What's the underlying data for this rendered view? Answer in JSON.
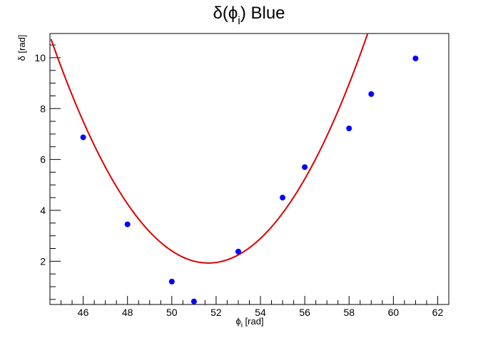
{
  "chart_data": {
    "type": "scatter",
    "title": "δ(ϕ_i) Blue",
    "title_parts": {
      "main": "δ(ϕ",
      "sub": "i",
      "tail": ") Blue"
    },
    "xlabel": "ϕ_i [rad]",
    "xlabel_parts": {
      "main": "ϕ",
      "sub": "i",
      "tail": " [rad]"
    },
    "ylabel": "δ [rad]",
    "xlim": [
      44.5,
      62.5
    ],
    "ylim": [
      0.3,
      10.95
    ],
    "x_ticks": [
      46,
      48,
      50,
      52,
      54,
      56,
      58,
      60,
      62
    ],
    "y_ticks": [
      2,
      4,
      6,
      8,
      10
    ],
    "grid": false,
    "series": [
      {
        "points": [
          {
            "x": 46,
            "y": 6.87
          },
          {
            "x": 48,
            "y": 3.45
          },
          {
            "x": 50,
            "y": 1.2
          },
          {
            "x": 51,
            "y": 0.42
          },
          {
            "x": 53,
            "y": 2.38
          },
          {
            "x": 55,
            "y": 4.5
          },
          {
            "x": 56,
            "y": 5.7
          },
          {
            "x": 58,
            "y": 7.22
          },
          {
            "x": 59,
            "y": 8.57
          },
          {
            "x": 61,
            "y": 9.97
          }
        ],
        "color": "#0000ff"
      }
    ],
    "fit": {
      "type": "quadratic",
      "vertex_x": 51.65,
      "vertex_y": 1.93,
      "curvature": 0.1745,
      "x_start": 44.55,
      "color": "#dd0000"
    }
  }
}
